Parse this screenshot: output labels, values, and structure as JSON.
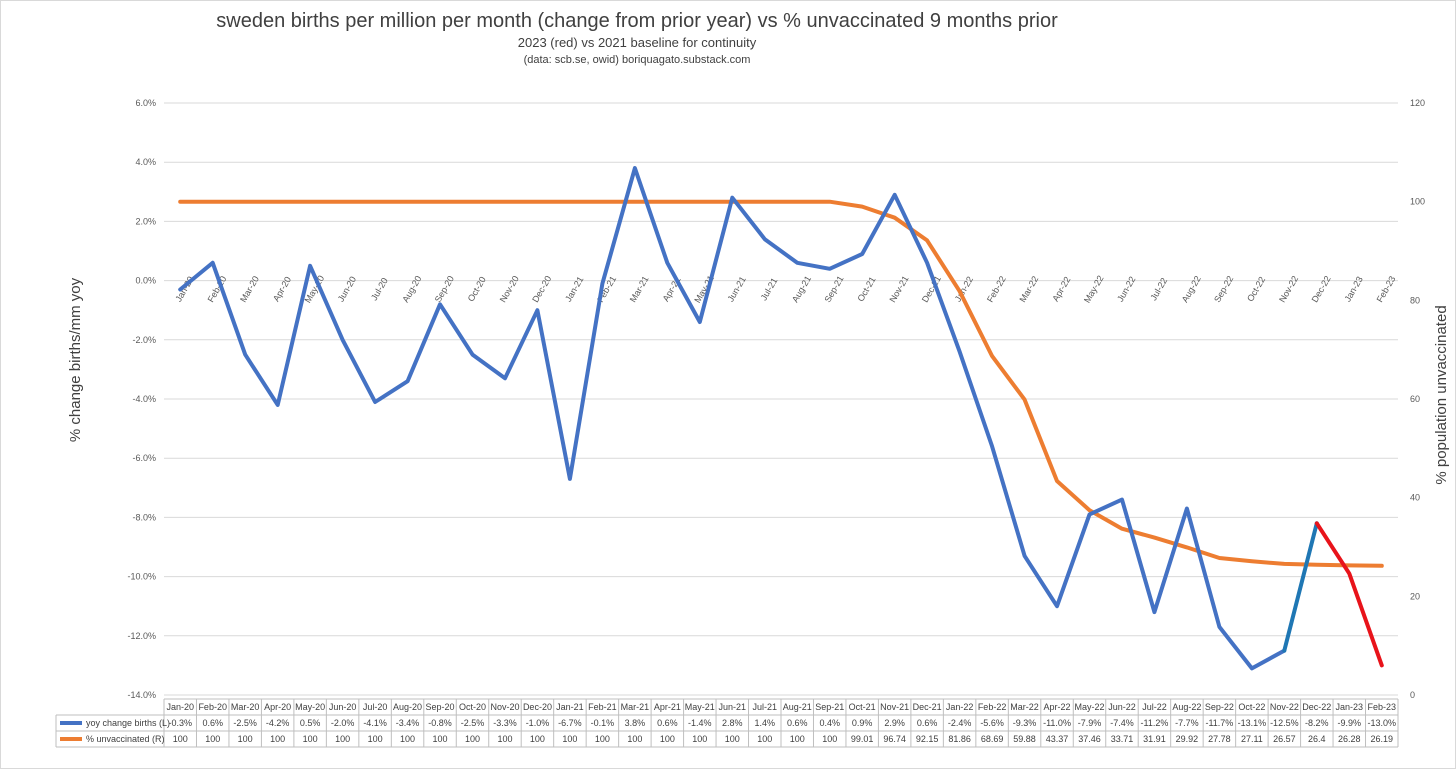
{
  "chart_data": {
    "type": "line",
    "title": "sweden births per million per month (change from prior year) vs % unvaccinated 9 months prior",
    "subtitle": "2023 (red) vs 2021 baseline for continuity",
    "source": "(data: scb.se, owid)   boriquagato.substack.com",
    "ylabel": "% change births/mm yoy",
    "y2label": "% population unvaccinated",
    "ylim": [
      -14,
      6
    ],
    "y2lim": [
      0,
      120
    ],
    "grid": true,
    "legend": "data-table",
    "categories": [
      "Jan-20",
      "Feb-20",
      "Mar-20",
      "Apr-20",
      "May-20",
      "Jun-20",
      "Jul-20",
      "Aug-20",
      "Sep-20",
      "Oct-20",
      "Nov-20",
      "Dec-20",
      "Jan-21",
      "Feb-21",
      "Mar-21",
      "Apr-21",
      "May-21",
      "Jun-21",
      "Jul-21",
      "Aug-21",
      "Sep-21",
      "Oct-21",
      "Nov-21",
      "Dec-21",
      "Jan-22",
      "Feb-22",
      "Mar-22",
      "Apr-22",
      "May-22",
      "Jun-22",
      "Jul-22",
      "Aug-22",
      "Sep-22",
      "Oct-22",
      "Nov-22",
      "Dec-22",
      "Jan-23",
      "Feb-23"
    ],
    "y_ticks": [
      "6.0%",
      "4.0%",
      "2.0%",
      "0.0%",
      "-2.0%",
      "-4.0%",
      "-6.0%",
      "-8.0%",
      "-10.0%",
      "-12.0%",
      "-14.0%"
    ],
    "y2_ticks": [
      "120",
      "100",
      "80",
      "60",
      "40",
      "20",
      "0"
    ],
    "series": [
      {
        "name": "yoy change births (L)",
        "color": "#4472C4",
        "axis": "left",
        "values": [
          -0.3,
          0.6,
          -2.5,
          -4.2,
          0.5,
          -2.0,
          -4.1,
          -3.4,
          -0.8,
          -2.5,
          -3.3,
          -1.0,
          -6.7,
          -0.1,
          3.8,
          0.6,
          -1.4,
          2.8,
          1.4,
          0.6,
          0.4,
          0.9,
          2.9,
          0.6,
          -2.4,
          -5.6,
          -9.3,
          -11.0,
          -7.9,
          -7.4,
          -11.2,
          -7.7,
          -11.7,
          -13.1,
          -12.5,
          -8.2,
          -9.9,
          -13.0
        ],
        "labels": [
          "-0.3%",
          "0.6%",
          "-2.5%",
          "-4.2%",
          "0.5%",
          "-2.0%",
          "-4.1%",
          "-3.4%",
          "-0.8%",
          "-2.5%",
          "-3.3%",
          "-1.0%",
          "-6.7%",
          "-0.1%",
          "3.8%",
          "0.6%",
          "-1.4%",
          "2.8%",
          "1.4%",
          "0.6%",
          "0.4%",
          "0.9%",
          "2.9%",
          "0.6%",
          "-2.4%",
          "-5.6%",
          "-9.3%",
          "-11.0%",
          "-7.9%",
          "-7.4%",
          "-11.2%",
          "-7.7%",
          "-11.7%",
          "-13.1%",
          "-12.5%",
          "-8.2%",
          "-9.9%",
          "-13.0%"
        ]
      },
      {
        "name": "% unvaccinated (R)",
        "color": "#ED7D31",
        "axis": "right",
        "values": [
          100,
          100,
          100,
          100,
          100,
          100,
          100,
          100,
          100,
          100,
          100,
          100,
          100,
          100,
          100,
          100,
          100,
          100,
          100,
          100,
          100,
          99.01,
          96.74,
          92.15,
          81.86,
          68.69,
          59.88,
          43.37,
          37.46,
          33.71,
          31.91,
          29.92,
          27.78,
          27.11,
          26.57,
          26.4,
          26.28,
          26.19
        ],
        "labels": [
          "100",
          "100",
          "100",
          "100",
          "100",
          "100",
          "100",
          "100",
          "100",
          "100",
          "100",
          "100",
          "100",
          "100",
          "100",
          "100",
          "100",
          "100",
          "100",
          "100",
          "100",
          "99.01",
          "96.74",
          "92.15",
          "81.86",
          "68.69",
          "59.88",
          "43.37",
          "37.46",
          "33.71",
          "31.91",
          "29.92",
          "27.78",
          "27.11",
          "26.57",
          "26.4",
          "26.28",
          "26.19"
        ]
      }
    ],
    "highlights": [
      {
        "from": "Nov-22",
        "to": "Dec-22",
        "color": "#1F77B4"
      },
      {
        "from": "Dec-22",
        "to": "Feb-23",
        "color": "#E8131A"
      }
    ]
  }
}
